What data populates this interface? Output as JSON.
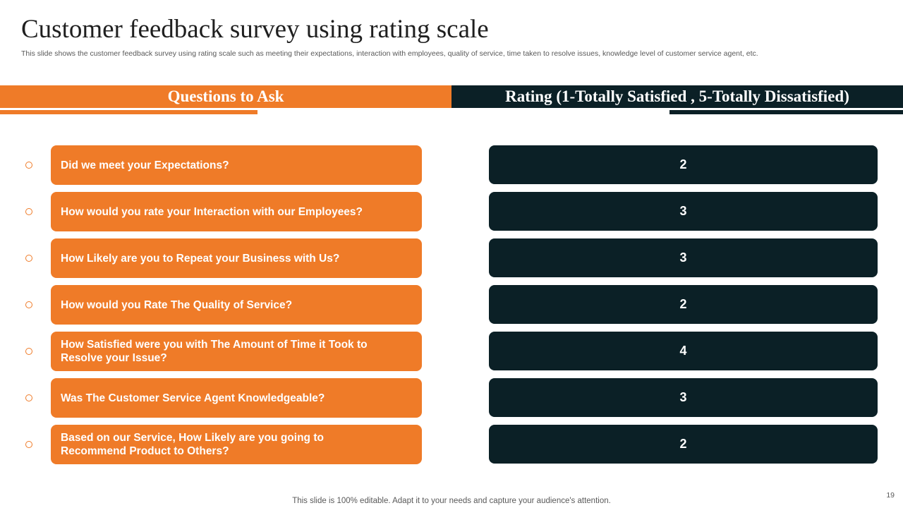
{
  "slide": {
    "title": "Customer feedback survey using rating scale",
    "subtitle": "This slide shows the customer feedback survey using rating scale such as meeting their expectations, interaction with employees, quality of service, time taken to resolve issues, knowledge level of customer service agent, etc.",
    "page_number": "19",
    "footer": "This slide is 100% editable. Adapt it to your needs and capture your audience's attention."
  },
  "headers": {
    "questions": "Questions to Ask",
    "rating": "Rating (1-Totally Satisfied , 5-Totally Dissatisfied)"
  },
  "rows": [
    {
      "question": "Did we meet your Expectations?",
      "rating": "2"
    },
    {
      "question": "How would you rate your Interaction with our Employees?",
      "rating": "3"
    },
    {
      "question": "How Likely are you to Repeat your Business with Us?",
      "rating": "3"
    },
    {
      "question": "How would you Rate The Quality of Service?",
      "rating": "2"
    },
    {
      "question": "How Satisfied were you with The Amount of Time it Took to Resolve your Issue?",
      "rating": "4"
    },
    {
      "question": "Was The Customer Service Agent Knowledgeable?",
      "rating": "3"
    },
    {
      "question": "Based on our Service, How Likely are you going to Recommend Product to Others?",
      "rating": "2"
    }
  ],
  "colors": {
    "accent_orange": "#ef7b28",
    "accent_dark": "#0b2026"
  },
  "icons": {
    "bullet": "circle-outline-icon"
  }
}
